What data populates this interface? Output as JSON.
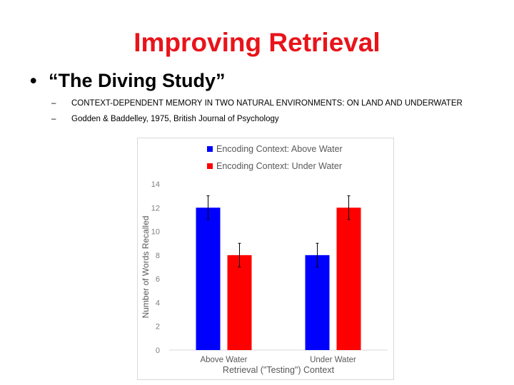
{
  "slide": {
    "title": "Improving Retrieval",
    "bullet": "“The Diving Study”",
    "sub_items": [
      "CONTEXT-DEPENDENT MEMORY IN TWO NATURAL ENVIRONMENTS: ON LAND AND UNDERWATER",
      "Godden & Baddelley, 1975, British Journal of Psychology"
    ]
  },
  "colors": {
    "title": "#e8141a",
    "series_above": "#0000ff",
    "series_under": "#ff0000"
  },
  "chart_data": {
    "type": "bar",
    "categories": [
      "Above Water",
      "Under Water"
    ],
    "series": [
      {
        "name": "Encoding Context: Above Water",
        "values": [
          12,
          8
        ],
        "error": [
          1,
          1
        ]
      },
      {
        "name": "Encoding Context: Under Water",
        "values": [
          8,
          12
        ],
        "error": [
          1,
          1
        ]
      }
    ],
    "xlabel": "Retrieval (\"Testing\") Context",
    "ylabel": "Number of Words Recalled",
    "ylim": [
      0,
      14
    ],
    "yticks": [
      0,
      2,
      4,
      6,
      8,
      10,
      12,
      14
    ],
    "grid": false,
    "legend": "top"
  }
}
